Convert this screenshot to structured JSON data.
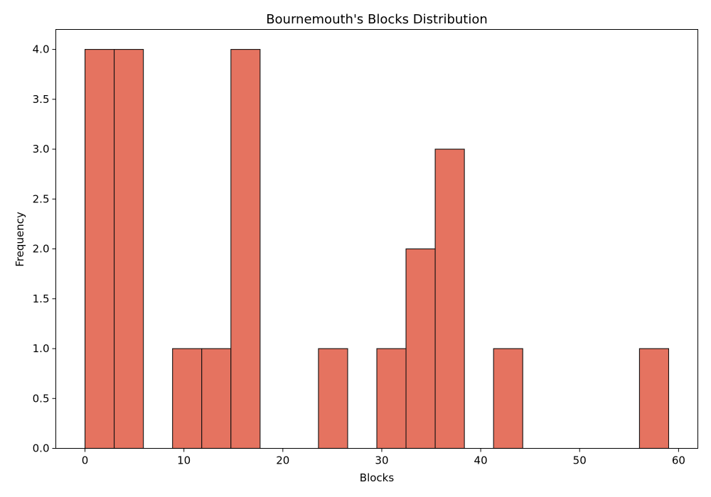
{
  "chart_data": {
    "type": "bar",
    "title": "Bournemouth's Blocks Distribution",
    "xlabel": "Blocks",
    "ylabel": "Frequency",
    "bin_edges": [
      0,
      2.95,
      5.9,
      8.85,
      11.8,
      14.75,
      17.7,
      20.65,
      23.6,
      26.55,
      29.5,
      32.45,
      35.4,
      38.35,
      41.3,
      44.25,
      47.2,
      50.15,
      53.1,
      56.05,
      59
    ],
    "counts": [
      4,
      4,
      0,
      1,
      1,
      4,
      0,
      0,
      1,
      0,
      1,
      2,
      3,
      0,
      1,
      0,
      0,
      0,
      0,
      1
    ],
    "xlim": [
      -2.95,
      61.95
    ],
    "ylim": [
      0,
      4.2
    ],
    "x_ticks": [
      0,
      10,
      20,
      30,
      40,
      50,
      60
    ],
    "x_tick_labels": [
      "0",
      "10",
      "20",
      "30",
      "40",
      "50",
      "60"
    ],
    "y_ticks": [
      0,
      0.5,
      1,
      1.5,
      2,
      2.5,
      3,
      3.5,
      4
    ],
    "y_tick_labels": [
      "0.0",
      "0.5",
      "1.0",
      "1.5",
      "2.0",
      "2.5",
      "3.0",
      "3.5",
      "4.0"
    ],
    "bar_color": "#e57360",
    "edge_color": "#111111",
    "grid": false
  }
}
